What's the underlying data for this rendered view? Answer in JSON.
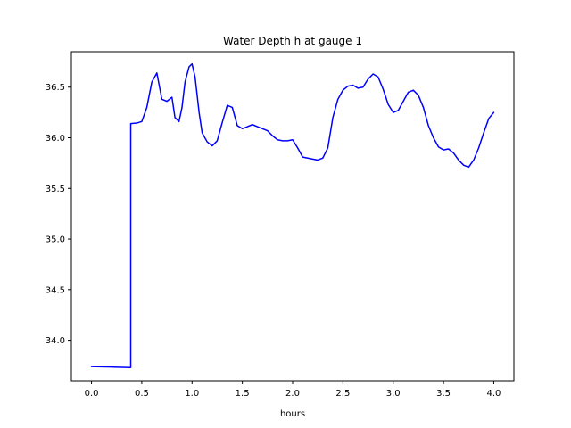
{
  "chart_data": {
    "type": "line",
    "title": "Water Depth h at gauge 1",
    "xlabel": "hours",
    "ylabel": "",
    "xlim": [
      -0.2,
      4.2
    ],
    "ylim": [
      33.6,
      36.85
    ],
    "xticks": [
      0.0,
      0.5,
      1.0,
      1.5,
      2.0,
      2.5,
      3.0,
      3.5,
      4.0
    ],
    "xtick_labels": [
      "0.0",
      "0.5",
      "1.0",
      "1.5",
      "2.0",
      "2.5",
      "3.0",
      "3.5",
      "4.0"
    ],
    "yticks": [
      34.0,
      34.5,
      35.0,
      35.5,
      36.0,
      36.5
    ],
    "ytick_labels": [
      "34.0",
      "34.5",
      "35.0",
      "35.5",
      "36.0",
      "36.5"
    ],
    "grid": false,
    "color": "#0000ff",
    "series": [
      {
        "x": [
          0.0,
          0.2,
          0.39,
          0.39,
          0.45,
          0.5,
          0.55,
          0.6,
          0.65,
          0.7,
          0.75,
          0.8,
          0.83,
          0.87,
          0.9,
          0.93,
          0.97,
          1.0,
          1.03,
          1.07,
          1.1,
          1.15,
          1.2,
          1.25,
          1.3,
          1.35,
          1.4,
          1.45,
          1.5,
          1.55,
          1.6,
          1.65,
          1.7,
          1.75,
          1.8,
          1.85,
          1.9,
          1.95,
          2.0,
          2.05,
          2.1,
          2.15,
          2.2,
          2.25,
          2.3,
          2.35,
          2.4,
          2.45,
          2.5,
          2.55,
          2.6,
          2.65,
          2.7,
          2.75,
          2.8,
          2.85,
          2.9,
          2.95,
          3.0,
          3.05,
          3.1,
          3.15,
          3.2,
          3.25,
          3.3,
          3.35,
          3.4,
          3.45,
          3.5,
          3.55,
          3.6,
          3.65,
          3.7,
          3.75,
          3.8,
          3.85,
          3.9,
          3.95,
          4.0
        ],
        "y": [
          33.74,
          33.735,
          33.73,
          36.14,
          36.145,
          36.16,
          36.3,
          36.55,
          36.64,
          36.38,
          36.36,
          36.4,
          36.2,
          36.16,
          36.3,
          36.55,
          36.7,
          36.73,
          36.6,
          36.25,
          36.05,
          35.96,
          35.92,
          35.97,
          36.15,
          36.32,
          36.3,
          36.12,
          36.09,
          36.11,
          36.13,
          36.11,
          36.09,
          36.07,
          36.02,
          35.98,
          35.97,
          35.97,
          35.98,
          35.9,
          35.81,
          35.8,
          35.79,
          35.78,
          35.8,
          35.9,
          36.2,
          36.38,
          36.47,
          36.51,
          36.52,
          36.49,
          36.5,
          36.58,
          36.63,
          36.6,
          36.48,
          36.33,
          36.25,
          36.27,
          36.36,
          36.45,
          36.47,
          36.42,
          36.3,
          36.12,
          36.0,
          35.91,
          35.88,
          35.89,
          35.85,
          35.78,
          35.73,
          35.71,
          35.78,
          35.9,
          36.05,
          36.19,
          36.25
        ]
      }
    ]
  }
}
